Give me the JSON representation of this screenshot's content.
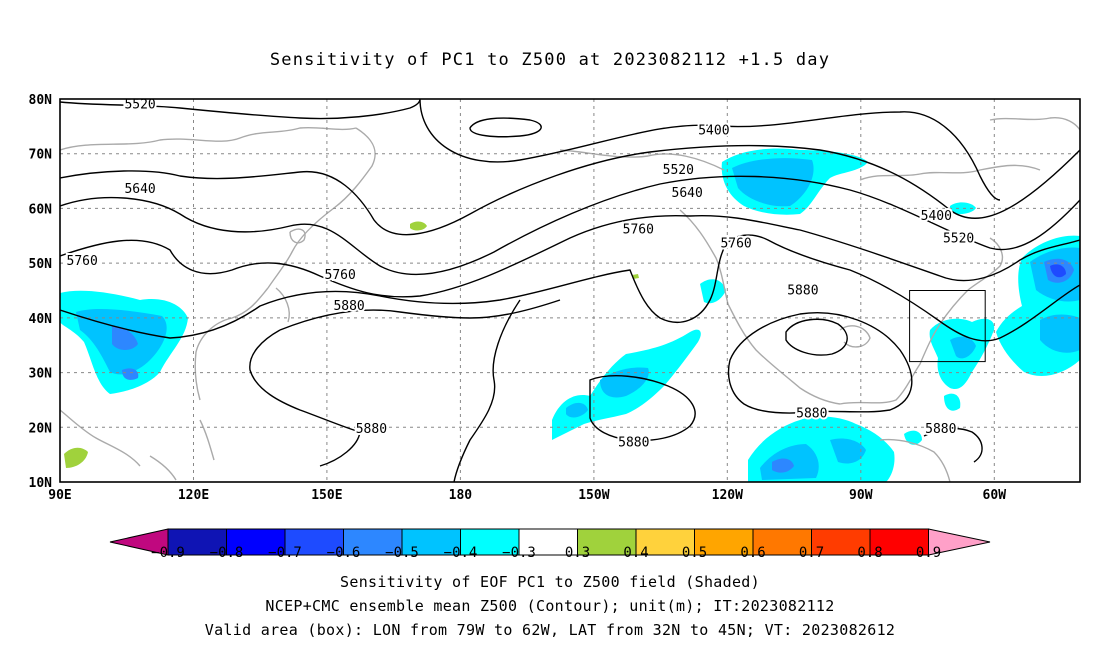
{
  "title": "Sensitivity of PC1 to Z500 at 2023082112 +1.5 day",
  "lat_labels": [
    "80N",
    "70N",
    "60N",
    "50N",
    "40N",
    "30N",
    "20N",
    "10N"
  ],
  "lon_labels": [
    "90E",
    "120E",
    "150E",
    "180",
    "150W",
    "120W",
    "90W",
    "60W"
  ],
  "contour_labels": [
    {
      "text": "5520",
      "lon": 108,
      "lat": 79.1
    },
    {
      "text": "5400",
      "lon": -123,
      "lat": 74.3
    },
    {
      "text": "5520",
      "lon": -131,
      "lat": 67.1
    },
    {
      "text": "5640",
      "lon": -129,
      "lat": 62.9
    },
    {
      "text": "5640",
      "lon": 108,
      "lat": 63.6
    },
    {
      "text": "5400",
      "lon": -73,
      "lat": 58.7
    },
    {
      "text": "5520",
      "lon": -68,
      "lat": 54.6
    },
    {
      "text": "5760",
      "lon": -140,
      "lat": 56.2
    },
    {
      "text": "5760",
      "lon": -118,
      "lat": 53.7
    },
    {
      "text": "5760",
      "lon": 95,
      "lat": 50.5
    },
    {
      "text": "5760",
      "lon": 153,
      "lat": 47.9
    },
    {
      "text": "5880",
      "lon": 155,
      "lat": 42.3
    },
    {
      "text": "5880",
      "lon": -103,
      "lat": 45.1
    },
    {
      "text": "5880",
      "lon": 160,
      "lat": 19.8
    },
    {
      "text": "5880",
      "lon": -141,
      "lat": 17.3
    },
    {
      "text": "5880",
      "lon": -101,
      "lat": 22.6
    },
    {
      "text": "5880",
      "lon": -72,
      "lat": 19.8
    }
  ],
  "valid_box": {
    "lon_min": -79,
    "lon_max": -62,
    "lat_min": 32,
    "lat_max": 45
  },
  "colorbar": {
    "colors": [
      "#c0087f",
      "#0f14b4",
      "#0000ff",
      "#1e4bff",
      "#2d87ff",
      "#00c3ff",
      "#00ffff",
      "#ffffff",
      "#a0d23c",
      "#ffd23c",
      "#ffa500",
      "#ff7800",
      "#ff3c00",
      "#ff0000",
      "#ffa0c8"
    ],
    "labels": [
      "−0.9",
      "−0.8",
      "−0.7",
      "−0.6",
      "−0.5",
      "−0.4",
      "−0.3",
      "0.3",
      "0.4",
      "0.5",
      "0.6",
      "0.7",
      "0.8",
      "0.9"
    ]
  },
  "captions": {
    "line1": "Sensitivity of EOF PC1 to Z500 field (Shaded)",
    "line2": "NCEP+CMC ensemble mean Z500 (Contour); unit(m); IT:2023082112",
    "line3": "Valid area (box): LON from 79W to 62W, LAT from 32N to 45N; VT: 2023082612"
  }
}
